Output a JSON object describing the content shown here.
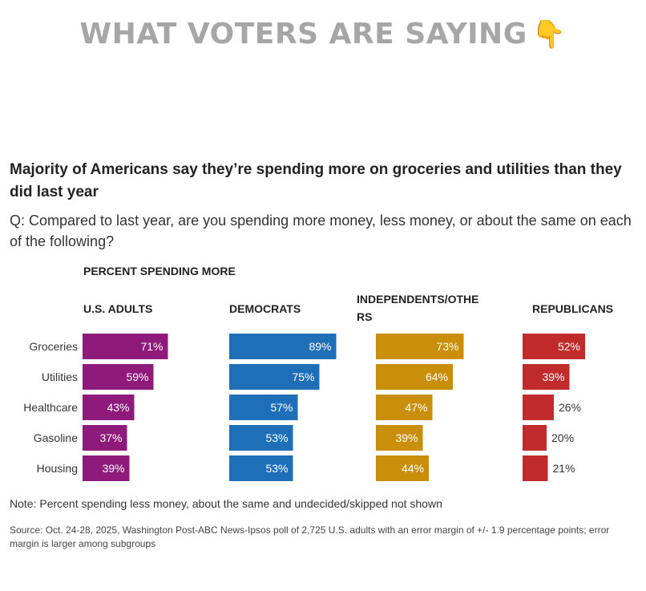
{
  "banner": {
    "text": "WHAT VOTERS ARE SAYING",
    "emoji": "👇"
  },
  "chart_data": {
    "type": "bar",
    "orientation": "horizontal",
    "title": "Majority of Americans say they’re spending more on groceries and utilities than they did last year",
    "subtitle": "Q: Compared to last year, are you spending more money, less money, or about the same on each of the following?",
    "value_label": "PERCENT SPENDING MORE",
    "categories": [
      "Groceries",
      "Utilities",
      "Healthcare",
      "Gasoline",
      "Housing"
    ],
    "series": [
      {
        "name": "U.S. ADULTS",
        "color": "#8e1a7c",
        "values": [
          71,
          59,
          43,
          37,
          39
        ]
      },
      {
        "name": "DEMOCRATS",
        "color": "#1f6fb8",
        "values": [
          89,
          75,
          57,
          53,
          53
        ]
      },
      {
        "name": "INDEPENDENTS/OTHERS",
        "display_name_lines": [
          "INDEPENDENTS/OTHE",
          "RS"
        ],
        "color": "#c98f0b",
        "values": [
          73,
          64,
          47,
          39,
          44
        ]
      },
      {
        "name": "REPUBLICANS",
        "color": "#c12b2b",
        "values": [
          52,
          39,
          26,
          20,
          21
        ]
      }
    ],
    "unit": "%",
    "xlim": [
      0,
      100
    ],
    "grid": false,
    "legend": "none",
    "note": "Note: Percent spending less money, about the same and undecided/skipped not shown",
    "source": "Source: Oct. 24-28, 2025, Washington Post-ABC News-Ipsos poll of 2,725 U.S. adults with an error margin of +/- 1.9 percentage points; error margin is larger among subgroups"
  }
}
